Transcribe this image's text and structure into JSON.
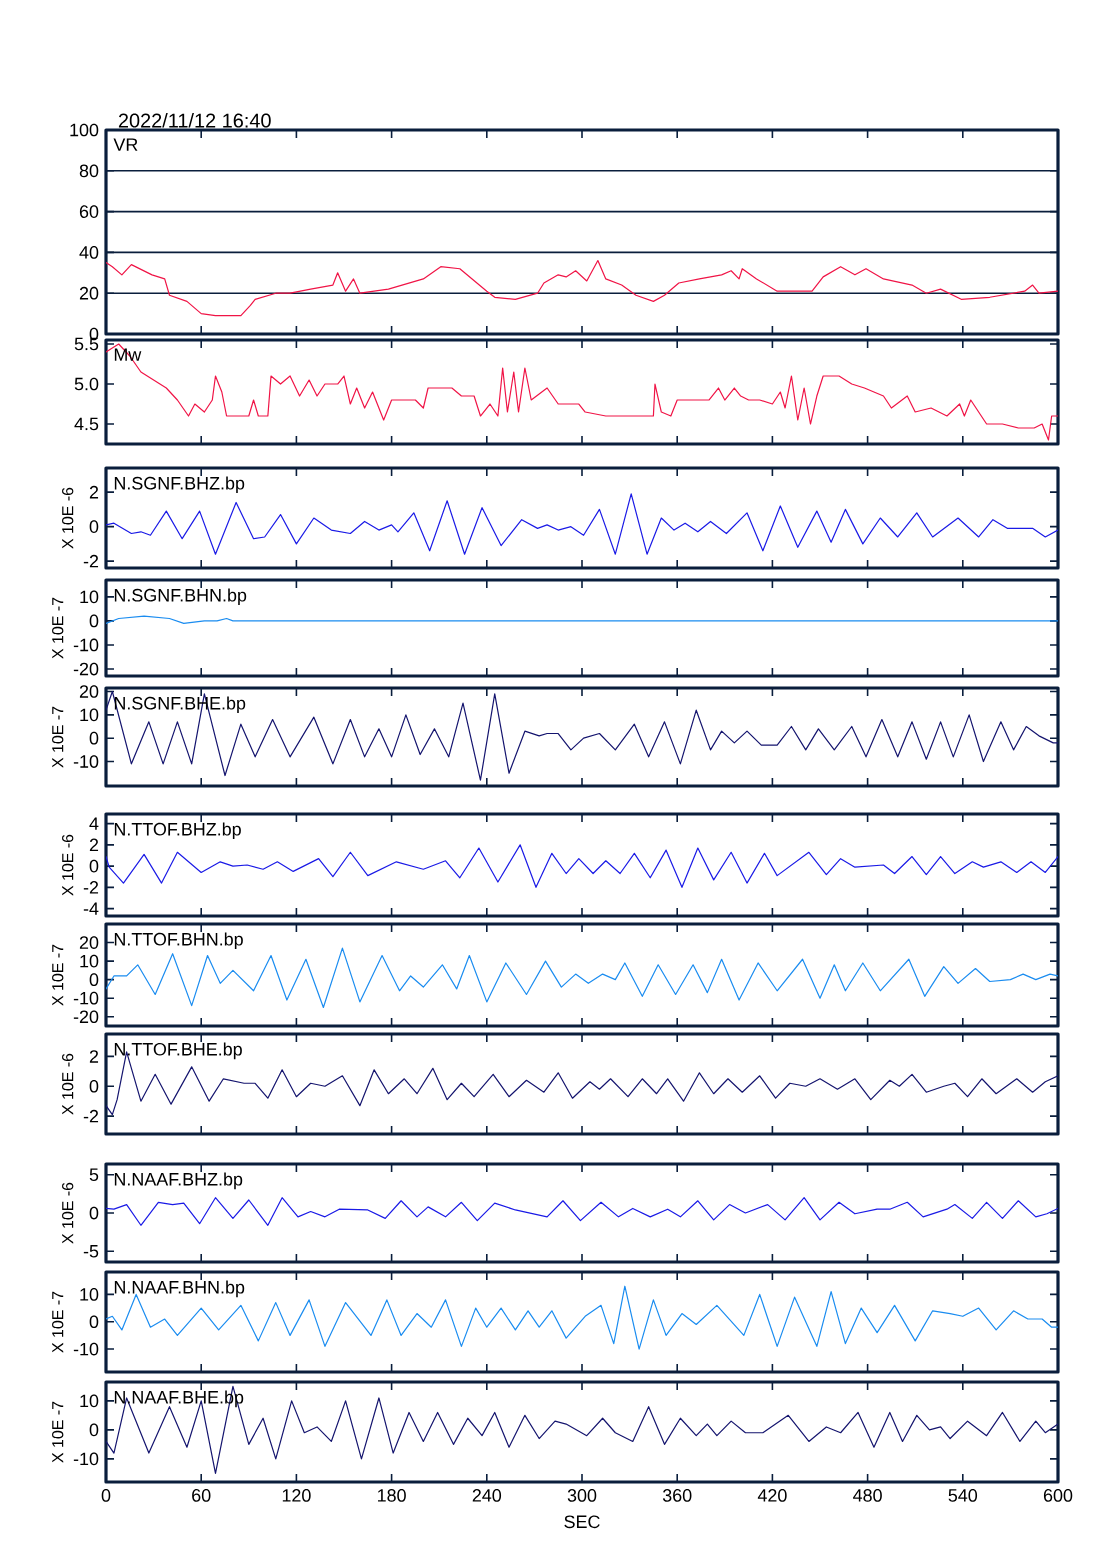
{
  "chart_data": [
    {
      "type": "line",
      "title": "VR",
      "annotations": [
        "2022/11/12  16:40"
      ],
      "color": "#f01446",
      "grid": "y",
      "tick_labels": "y",
      "xlim": [
        0,
        600
      ],
      "xticks": [
        0,
        60,
        120,
        180,
        240,
        300,
        360,
        420,
        480,
        540,
        600
      ],
      "ylim": [
        0,
        100
      ],
      "yticks": [
        0,
        20,
        40,
        60,
        80,
        100
      ],
      "x": [
        0,
        4,
        10,
        16,
        29,
        37,
        40,
        51,
        60,
        69,
        85,
        91,
        94,
        107,
        116,
        129,
        143,
        146,
        151,
        156,
        160,
        178,
        200,
        211,
        223,
        240,
        245,
        258,
        272,
        276,
        285,
        290,
        296,
        303,
        310,
        315,
        325,
        334,
        345,
        352,
        361,
        374,
        388,
        394,
        399,
        401,
        410,
        423,
        445,
        452,
        463,
        472,
        479,
        490,
        508,
        517,
        526,
        539,
        557,
        579,
        584,
        588,
        600
      ],
      "values": [
        35,
        33,
        29,
        34,
        29,
        27,
        19,
        16,
        10,
        9,
        9,
        14,
        17,
        20,
        20,
        22,
        24,
        30,
        21,
        27,
        20,
        22,
        27,
        33,
        32,
        21,
        18,
        17,
        20,
        25,
        29,
        28,
        31,
        26,
        36,
        27,
        24,
        19,
        16,
        19,
        25,
        27,
        29,
        31,
        27,
        32,
        27,
        21,
        21,
        28,
        33,
        29,
        32,
        27,
        24,
        20,
        22,
        17,
        18,
        21,
        24,
        20,
        21
      ]
    },
    {
      "type": "line",
      "title": "Mw",
      "color": "#f01446",
      "tick_labels": "y",
      "xlim": [
        0,
        600
      ],
      "xticks": [
        0,
        60,
        120,
        180,
        240,
        300,
        360,
        420,
        480,
        540,
        600
      ],
      "ylim": [
        4.25,
        5.55
      ],
      "yticks": [
        4.5,
        {
          "value": 5.0,
          "label": "5.0"
        },
        5.5
      ],
      "x": [
        0,
        8,
        15,
        22,
        30,
        38,
        45,
        52,
        56,
        62,
        67,
        69,
        73,
        76,
        90,
        93,
        96,
        102,
        104,
        110,
        116,
        122,
        128,
        133,
        138,
        146,
        150,
        154,
        158,
        163,
        168,
        175,
        180,
        195,
        200,
        203,
        212,
        218,
        224,
        232,
        236,
        242,
        247,
        250,
        253,
        257,
        260,
        264,
        268,
        278,
        285,
        298,
        302,
        315,
        330,
        345,
        346,
        350,
        356,
        360,
        380,
        386,
        390,
        396,
        400,
        405,
        412,
        420,
        425,
        428,
        432,
        436,
        440,
        444,
        448,
        452,
        462,
        470,
        478,
        490,
        495,
        505,
        510,
        520,
        530,
        538,
        541,
        545,
        550,
        555,
        565,
        575,
        585,
        590,
        594,
        596,
        600
      ],
      "values": [
        5.4,
        5.5,
        5.35,
        5.15,
        5.05,
        4.95,
        4.8,
        4.6,
        4.75,
        4.65,
        4.8,
        5.1,
        4.9,
        4.6,
        4.6,
        4.8,
        4.6,
        4.6,
        5.1,
        5.0,
        5.1,
        4.85,
        5.05,
        4.85,
        5.0,
        5.0,
        5.1,
        4.75,
        4.95,
        4.7,
        4.9,
        4.55,
        4.8,
        4.8,
        4.7,
        4.95,
        4.95,
        4.95,
        4.85,
        4.85,
        4.6,
        4.75,
        4.6,
        5.2,
        4.65,
        5.15,
        4.65,
        5.2,
        4.8,
        4.95,
        4.75,
        4.75,
        4.65,
        4.6,
        4.6,
        4.6,
        5.0,
        4.65,
        4.6,
        4.8,
        4.8,
        4.95,
        4.8,
        4.95,
        4.85,
        4.8,
        4.8,
        4.75,
        4.9,
        4.7,
        5.1,
        4.55,
        4.95,
        4.5,
        4.85,
        5.1,
        5.1,
        5.0,
        4.95,
        4.85,
        4.7,
        4.85,
        4.65,
        4.7,
        4.6,
        4.75,
        4.6,
        4.8,
        4.65,
        4.5,
        4.5,
        4.45,
        4.45,
        4.5,
        4.3,
        4.6,
        4.6
      ]
    },
    {
      "type": "line",
      "title": "N.SGNF.BHZ.bp",
      "ylabel": "X 10E -6",
      "color": "#1a1ae6",
      "tick_labels": "y",
      "xlim": [
        0,
        600
      ],
      "xticks": [
        0,
        60,
        120,
        180,
        240,
        300,
        360,
        420,
        480,
        540,
        600
      ],
      "ylim": [
        -2.4,
        3.4
      ],
      "yticks": [
        -2,
        0,
        2
      ],
      "x": [
        0,
        5,
        16,
        22,
        28,
        38,
        48,
        59,
        69,
        82,
        93,
        100,
        110,
        120,
        131,
        142,
        154,
        163,
        172,
        180,
        184,
        194,
        204,
        215,
        226,
        237,
        249,
        262,
        272,
        278,
        285,
        293,
        301,
        311,
        321,
        331,
        341,
        350,
        358,
        365,
        373,
        381,
        391,
        404,
        414,
        425,
        436,
        448,
        457,
        466,
        477,
        488,
        499,
        511,
        521,
        537,
        550,
        559,
        568,
        584,
        592,
        600
      ],
      "values": [
        0.1,
        0.2,
        -0.4,
        -0.3,
        -0.5,
        0.9,
        -0.7,
        0.9,
        -1.6,
        1.4,
        -0.7,
        -0.6,
        0.7,
        -1.0,
        0.5,
        -0.2,
        -0.4,
        0.3,
        -0.2,
        0.1,
        -0.3,
        0.8,
        -1.4,
        1.5,
        -1.6,
        1.1,
        -1.1,
        0.4,
        -0.1,
        0.1,
        -0.2,
        0,
        -0.5,
        1.0,
        -1.6,
        1.9,
        -1.6,
        0.5,
        -0.2,
        0.2,
        -0.3,
        0.3,
        -0.4,
        0.8,
        -1.4,
        1.2,
        -1.2,
        0.9,
        -0.9,
        1.0,
        -1.0,
        0.5,
        -0.6,
        0.8,
        -0.6,
        0.5,
        -0.6,
        0.4,
        -0.1,
        -0.1,
        -0.6,
        -0.2
      ]
    },
    {
      "type": "line",
      "title": "N.SGNF.BHN.bp",
      "ylabel": "X 10E -7",
      "color": "#1a8cf0",
      "tick_labels": "y",
      "xlim": [
        0,
        600
      ],
      "xticks": [
        0,
        60,
        120,
        180,
        240,
        300,
        360,
        420,
        480,
        540,
        600
      ],
      "ylim": [
        -22.9,
        17
      ],
      "yticks": [
        -20,
        -10,
        0,
        10
      ],
      "x": [
        0,
        8,
        24,
        40,
        49,
        62,
        70,
        76,
        80,
        600
      ],
      "values": [
        -1,
        1,
        2,
        1,
        -1,
        0,
        0,
        1,
        0,
        0
      ]
    },
    {
      "type": "line",
      "title": "N.SGNF.BHE.bp",
      "ylabel": "X 10E -7",
      "color": "#14146e",
      "tick_labels": "y",
      "xlim": [
        0,
        600
      ],
      "xticks": [
        0,
        60,
        120,
        180,
        240,
        300,
        360,
        420,
        480,
        540,
        600
      ],
      "ylim": [
        -20.5,
        21.5
      ],
      "yticks": [
        -10,
        0,
        10,
        20
      ],
      "x": [
        0,
        4,
        16,
        27,
        36,
        45,
        54,
        62,
        75,
        85,
        94,
        105,
        116,
        131,
        143,
        154,
        163,
        172,
        180,
        189,
        198,
        207,
        216,
        225,
        236,
        245,
        254,
        264,
        273,
        278,
        285,
        293,
        301,
        311,
        321,
        333,
        342,
        352,
        362,
        372,
        381,
        388,
        396,
        404,
        413,
        423,
        432,
        441,
        449,
        459,
        470,
        479,
        489,
        499,
        508,
        517,
        526,
        534,
        544,
        553,
        564,
        572,
        580,
        588,
        597,
        600
      ],
      "values": [
        12,
        20,
        -11,
        7,
        -11,
        7,
        -11,
        19,
        -16,
        6,
        -8,
        8,
        -8,
        9,
        -11,
        8,
        -8,
        4,
        -8,
        10,
        -7,
        4,
        -8,
        15,
        -18,
        19,
        -15,
        3,
        1,
        2,
        2,
        -5,
        0,
        2,
        -5,
        6,
        -8,
        7,
        -11,
        12,
        -5,
        3,
        -2,
        3,
        -3,
        -3,
        5,
        -5,
        4,
        -5,
        5,
        -8,
        8,
        -8,
        7,
        -9,
        7,
        -8,
        10,
        -10,
        7,
        -5,
        5,
        1,
        -2,
        -2
      ]
    },
    {
      "type": "line",
      "title": "N.TTOF.BHZ.bp",
      "ylabel": "X 10E -6",
      "color": "#1a1ae6",
      "tick_labels": "y",
      "xlim": [
        0,
        600
      ],
      "xticks": [
        0,
        60,
        120,
        180,
        240,
        300,
        360,
        420,
        480,
        540,
        600
      ],
      "ylim": [
        -4.7,
        4.9
      ],
      "yticks": [
        -4,
        -2,
        0,
        2,
        4
      ],
      "x": [
        0,
        2,
        11,
        24,
        35,
        45,
        60,
        72,
        80,
        89,
        99,
        108,
        118,
        134,
        143,
        154,
        165,
        183,
        200,
        214,
        223,
        235,
        247,
        261,
        271,
        281,
        290,
        298,
        307,
        315,
        324,
        333,
        343,
        353,
        363,
        373,
        383,
        394,
        404,
        415,
        423,
        443,
        454,
        463,
        472,
        490,
        497,
        508,
        517,
        526,
        535,
        546,
        553,
        564,
        574,
        583,
        592,
        600
      ],
      "values": [
        0.9,
        -0.1,
        -1.6,
        1.1,
        -1.6,
        1.3,
        -0.6,
        0.4,
        0,
        0.1,
        -0.3,
        0.4,
        -0.5,
        0.7,
        -1,
        1.3,
        -0.9,
        0.4,
        -0.3,
        0.5,
        -1.1,
        1.7,
        -1.5,
        2,
        -2,
        1.2,
        -0.7,
        0.7,
        -0.7,
        0.5,
        -0.7,
        1.2,
        -1.1,
        1.5,
        -2,
        1.7,
        -1.3,
        1.3,
        -1.6,
        1.2,
        -0.9,
        1.3,
        -0.8,
        0.7,
        -0.1,
        0.1,
        -0.7,
        0.9,
        -0.8,
        0.9,
        -0.7,
        0.4,
        -0.1,
        0.4,
        -0.6,
        0.4,
        -0.6,
        0.9
      ]
    },
    {
      "type": "line",
      "title": "N.TTOF.BHN.bp",
      "ylabel": "X 10E -7",
      "color": "#1a8cf0",
      "tick_labels": "y",
      "xlim": [
        0,
        600
      ],
      "xticks": [
        0,
        60,
        120,
        180,
        240,
        300,
        360,
        420,
        480,
        540,
        600
      ],
      "ylim": [
        -25,
        30
      ],
      "yticks": [
        -20,
        -10,
        0,
        10,
        20
      ],
      "x": [
        0,
        5,
        13,
        20,
        31,
        42,
        54,
        64,
        72,
        80,
        93,
        104,
        114,
        126,
        137,
        149,
        160,
        174,
        185,
        192,
        200,
        212,
        221,
        229,
        240,
        252,
        265,
        277,
        287,
        296,
        304,
        313,
        321,
        327,
        338,
        348,
        359,
        370,
        379,
        388,
        399,
        411,
        423,
        439,
        450,
        459,
        466,
        477,
        488,
        506,
        516,
        528,
        537,
        548,
        557,
        570,
        578,
        586,
        595,
        600
      ],
      "values": [
        -5,
        2,
        2,
        8,
        -8,
        14,
        -14,
        13,
        -2,
        5,
        -6,
        13,
        -11,
        11,
        -15,
        17,
        -12,
        13,
        -6,
        2,
        -4,
        8,
        -5,
        13,
        -12,
        9,
        -8,
        10,
        -4,
        3,
        -2,
        3,
        0,
        9,
        -9,
        8,
        -8,
        8,
        -7,
        11,
        -11,
        9,
        -6,
        11,
        -10,
        8,
        -6,
        9,
        -6,
        11,
        -9,
        7,
        -2,
        6,
        -1,
        0,
        3,
        0,
        3,
        2
      ]
    },
    {
      "type": "line",
      "title": "N.TTOF.BHE.bp",
      "ylabel": "X 10E -6",
      "color": "#14146e",
      "tick_labels": "y",
      "xlim": [
        0,
        600
      ],
      "xticks": [
        0,
        60,
        120,
        180,
        240,
        300,
        360,
        420,
        480,
        540,
        600
      ],
      "ylim": [
        -3.2,
        3.5
      ],
      "yticks": [
        -2,
        0,
        2
      ],
      "x": [
        0,
        4,
        7,
        13,
        22,
        31,
        41,
        54,
        65,
        74,
        87,
        94,
        102,
        111,
        120,
        129,
        138,
        149,
        160,
        169,
        178,
        188,
        196,
        206,
        215,
        224,
        232,
        244,
        254,
        265,
        276,
        285,
        294,
        305,
        311,
        318,
        329,
        338,
        347,
        354,
        364,
        374,
        383,
        392,
        401,
        412,
        422,
        431,
        441,
        450,
        461,
        472,
        482,
        494,
        500,
        508,
        517,
        528,
        535,
        543,
        552,
        561,
        574,
        584,
        592,
        600
      ],
      "values": [
        -1.3,
        -1.9,
        -0.9,
        2.3,
        -1,
        0.8,
        -1.2,
        1.3,
        -1,
        0.5,
        0.2,
        0.2,
        -0.8,
        1.1,
        -0.7,
        0.2,
        0,
        0.7,
        -1.3,
        1.1,
        -0.5,
        0.5,
        -0.5,
        1.2,
        -0.9,
        0.2,
        -0.7,
        0.8,
        -0.7,
        0.4,
        -0.4,
        0.9,
        -0.8,
        0.3,
        -0.2,
        0.5,
        -0.7,
        0.5,
        -0.5,
        0.5,
        -1,
        0.9,
        -0.5,
        0.5,
        -0.4,
        0.7,
        -0.8,
        0.2,
        0,
        0.5,
        -0.2,
        0.5,
        -0.9,
        0.4,
        0,
        0.8,
        -0.4,
        0,
        0.2,
        -0.7,
        0.5,
        -0.5,
        0.5,
        -0.4,
        0.3,
        0.7
      ]
    },
    {
      "type": "line",
      "title": "N.NAAF.BHZ.bp",
      "ylabel": "X 10E -6",
      "color": "#1a1ae6",
      "tick_labels": "y",
      "xlim": [
        0,
        600
      ],
      "xticks": [
        0,
        60,
        120,
        180,
        240,
        300,
        360,
        420,
        480,
        540,
        600
      ],
      "ylim": [
        -6.4,
        6.4
      ],
      "yticks": [
        -5,
        0,
        5
      ],
      "x": [
        0,
        5,
        13,
        22,
        33,
        42,
        49,
        59,
        69,
        80,
        90,
        102,
        111,
        121,
        129,
        138,
        147,
        165,
        176,
        186,
        196,
        203,
        214,
        224,
        234,
        245,
        258,
        278,
        288,
        299,
        312,
        323,
        332,
        343,
        354,
        362,
        373,
        383,
        393,
        403,
        417,
        428,
        440,
        450,
        462,
        472,
        486,
        494,
        505,
        515,
        530,
        535,
        546,
        555,
        565,
        575,
        586,
        593,
        600
      ],
      "values": [
        0.6,
        0.5,
        1.1,
        -1.6,
        1.4,
        1.1,
        1.3,
        -1.4,
        2,
        -0.7,
        1.7,
        -1.6,
        2,
        -0.5,
        0.2,
        -0.5,
        0.5,
        0.4,
        -0.7,
        1.6,
        -0.5,
        0.8,
        -0.5,
        1.4,
        -1.0,
        1.3,
        0.4,
        -0.5,
        1.6,
        -1,
        1.4,
        -0.5,
        0.6,
        -0.5,
        0.5,
        -0.5,
        1.6,
        -0.9,
        1.1,
        0,
        1.1,
        -0.9,
        2,
        -0.9,
        1.4,
        -0.1,
        0.5,
        0.5,
        1.4,
        -0.5,
        0.5,
        1.1,
        -0.7,
        1.4,
        -0.7,
        1.6,
        -0.5,
        -0.1,
        0.6
      ]
    },
    {
      "type": "line",
      "title": "N.NAAF.BHN.bp",
      "ylabel": "X 10E -7",
      "color": "#1a8cf0",
      "tick_labels": "y",
      "xlim": [
        0,
        600
      ],
      "xticks": [
        0,
        60,
        120,
        180,
        240,
        300,
        360,
        420,
        480,
        540,
        600
      ],
      "ylim": [
        -18.4,
        18.2
      ],
      "yticks": [
        -10,
        0,
        10
      ],
      "x": [
        0,
        4,
        10,
        19,
        28,
        37,
        45,
        60,
        71,
        85,
        96,
        107,
        116,
        128,
        138,
        151,
        167,
        177,
        186,
        196,
        205,
        214,
        224,
        233,
        240,
        249,
        258,
        266,
        273,
        281,
        290,
        302,
        312,
        320,
        327,
        336,
        345,
        353,
        363,
        372,
        385,
        402,
        412,
        423,
        434,
        448,
        457,
        466,
        476,
        486,
        497,
        510,
        521,
        532,
        540,
        550,
        561,
        572,
        581,
        590,
        596,
        600
      ],
      "values": [
        1,
        2,
        -3,
        10,
        -2,
        1,
        -5,
        5,
        -3,
        6,
        -7,
        7,
        -5,
        8,
        -9,
        7,
        -5,
        8,
        -5,
        3,
        -2,
        8,
        -9,
        5,
        -2,
        5,
        -3,
        4,
        -2,
        4,
        -6,
        2,
        6,
        -8,
        13,
        -10,
        8,
        -5,
        3,
        -1,
        6,
        -5,
        10,
        -9,
        9,
        -9,
        11,
        -8,
        5,
        -4,
        6,
        -7,
        4,
        3,
        2,
        5,
        -3,
        4,
        1,
        1,
        -2,
        -2
      ]
    },
    {
      "type": "line",
      "title": "N.NAAF.BHE.bp",
      "ylabel": "X 10E -7",
      "xlabel": "SEC",
      "color": "#14146e",
      "xlim": [
        0,
        600
      ],
      "xticks": [
        0,
        60,
        120,
        180,
        240,
        300,
        360,
        420,
        480,
        540,
        600
      ],
      "ylim": [
        -18,
        16.5
      ],
      "yticks": [
        -10,
        0,
        10
      ],
      "x": [
        0,
        5,
        13,
        27,
        40,
        51,
        60,
        69,
        80,
        90,
        99,
        107,
        117,
        125,
        133,
        142,
        151,
        161,
        172,
        181,
        191,
        200,
        209,
        219,
        228,
        237,
        245,
        254,
        264,
        273,
        283,
        290,
        303,
        313,
        321,
        332,
        342,
        352,
        362,
        372,
        379,
        385,
        394,
        403,
        414,
        430,
        443,
        454,
        463,
        474,
        484,
        494,
        502,
        511,
        519,
        526,
        532,
        543,
        555,
        565,
        576,
        586,
        592,
        600
      ],
      "values": [
        -4,
        -8,
        11,
        -8,
        8,
        -6,
        10,
        -15,
        15,
        -5,
        4,
        -10,
        10,
        -1,
        1,
        -4,
        10,
        -10,
        11,
        -8,
        6,
        -4,
        6,
        -5,
        4,
        -2,
        6,
        -6,
        5,
        -3,
        3,
        2,
        -2,
        4,
        -1,
        -4,
        8,
        -5,
        4,
        -2,
        2,
        -2,
        3,
        -1,
        -1,
        5,
        -4,
        1,
        -1,
        6,
        -6,
        6,
        -4,
        5,
        0,
        1,
        -3,
        3,
        -2,
        6,
        -4,
        3,
        -1,
        2
      ]
    }
  ]
}
